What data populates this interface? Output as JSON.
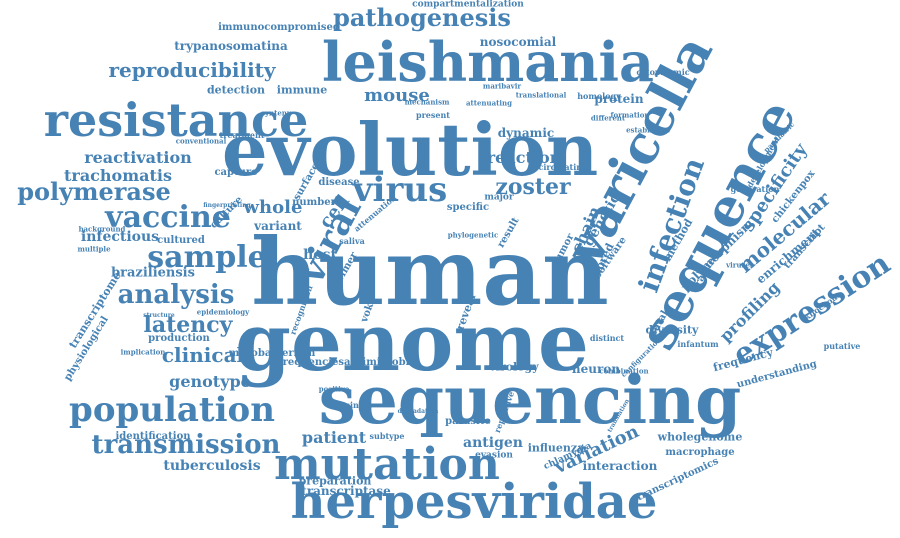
{
  "colors": {
    "word": "#4682b4",
    "background": "#ffffff"
  },
  "words": [
    "human",
    "genome",
    "sequencing",
    "evolution",
    "leishmania",
    "varicella",
    "sequence",
    "herpesviridae",
    "mutation",
    "resistance",
    "population",
    "vaccine",
    "sample",
    "virus",
    "expression",
    "infection",
    "transmission",
    "analysis",
    "pathogenesis",
    "polymerase",
    "latency",
    "clinical",
    "viral",
    "zoster",
    "reproducibility",
    "molecular",
    "variation",
    "specificity",
    "profiling",
    "reactivation",
    "trachomatis",
    "genotype",
    "tuberculosis",
    "patient",
    "antigen",
    "mouse",
    "reaction",
    "nosocomial",
    "trypanosomatina",
    "protein",
    "detection",
    "immune",
    "whole",
    "infectious",
    "braziliensis",
    "wholegenome",
    "interaction",
    "transcriptase",
    "preparation",
    "transcriptomics",
    "enrichment",
    "transcriptome",
    "physiological",
    "neuron",
    "chain",
    "genetic",
    "influenza",
    "macrophage",
    "identification",
    "compartmentalization",
    "immunocompromised",
    "cytoplasmic",
    "treatment",
    "conventional",
    "frequency",
    "understanding",
    "diversity",
    "variant",
    "host",
    "cell",
    "surface",
    "capture",
    "culture",
    "disease",
    "number",
    "specific",
    "dynamic",
    "present",
    "mechanism",
    "homology",
    "different",
    "formation",
    "establishes",
    "polymorphism",
    "chickenpox",
    "transcript",
    "method",
    "inbred",
    "tumor",
    "result",
    "major",
    "cultured",
    "multiple",
    "background",
    "epidemiology",
    "structure",
    "implication",
    "production",
    "mycobacterium",
    "frequenciesantimicrobial",
    "positive",
    "single",
    "subtype",
    "evasion",
    "chlamydia",
    "parasite",
    "repetitive",
    "virology",
    "distinct",
    "reveal",
    "voka",
    "primer",
    "saliva",
    "software",
    "fatal",
    "rashes",
    "infantum",
    "knockout",
    "putative",
    "viruses",
    "generation",
    "development",
    "cocirculating",
    "translational",
    "maribavir",
    "attenuating",
    "synteny",
    "paediatric",
    "configuration",
    "combination",
    "translation",
    "fingerprinting",
    "attenuation",
    "recognition",
    "degradation",
    "phylogenetic",
    "associated",
    "reverse",
    "nuclear",
    "asymptomatic",
    "cause",
    "individual"
  ]
}
